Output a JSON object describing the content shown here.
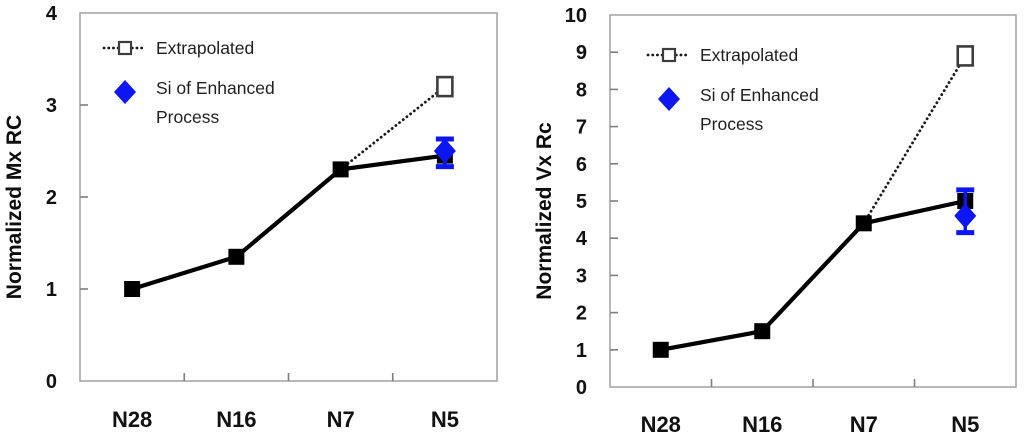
{
  "colors": {
    "background": "#ffffff",
    "axis_frame": "#a6a6a6",
    "tick": "#7f7f7f",
    "tick_text": "#111111",
    "axis_title_text": "#0d0d0d",
    "legend_text": "#1f1f1f",
    "series_black": "#000000",
    "extrapolated_line": "#1a1a1a",
    "open_square_stroke": "#3d3d3d",
    "enhanced_blue": "#0b16f2"
  },
  "chart_data": [
    {
      "type": "line",
      "name": "normalized-mx-rc",
      "title": "",
      "xlabel": "",
      "ylabel": "Normalized  Mx RC",
      "categories": [
        "N28",
        "N16",
        "N7",
        "N5"
      ],
      "ylim": [
        0,
        4
      ],
      "yticks": [
        0,
        1,
        2,
        3,
        4
      ],
      "grid": false,
      "legend_position": "top-left-inside",
      "series": [
        {
          "id": "extrapolated",
          "label": "Extrapolated",
          "style": "dotted-open-square",
          "points": [
            {
              "category": "N7",
              "value": 2.3,
              "marker": false
            },
            {
              "category": "N5",
              "value": 3.2,
              "marker": true
            }
          ]
        },
        {
          "id": "solid",
          "label": "",
          "style": "solid-filled-square",
          "points": [
            {
              "category": "N28",
              "value": 1.0
            },
            {
              "category": "N16",
              "value": 1.35
            },
            {
              "category": "N7",
              "value": 2.3
            },
            {
              "category": "N5",
              "value": 2.45
            }
          ]
        },
        {
          "id": "enhanced",
          "label": "Si of Enhanced Process",
          "style": "diamond-errorbar",
          "points": [
            {
              "category": "N5",
              "value": 2.5,
              "error_plus": 0.13,
              "error_minus": 0.17
            }
          ]
        }
      ],
      "legend": [
        {
          "marker": "dotted-open-square",
          "label_lines": [
            "Extrapolated"
          ]
        },
        {
          "marker": "blue-diamond",
          "label_lines": [
            "Si of Enhanced",
            "Process"
          ]
        }
      ]
    },
    {
      "type": "line",
      "name": "normalized-vx-rc",
      "title": "",
      "xlabel": "",
      "ylabel": "Normalized  Vx  Rc",
      "categories": [
        "N28",
        "N16",
        "N7",
        "N5"
      ],
      "ylim": [
        0,
        10
      ],
      "yticks": [
        0,
        1,
        2,
        3,
        4,
        5,
        6,
        7,
        8,
        9,
        10
      ],
      "grid": false,
      "legend_position": "top-left-inside",
      "series": [
        {
          "id": "extrapolated",
          "label": "Extrapolated",
          "style": "dotted-open-square",
          "points": [
            {
              "category": "N7",
              "value": 4.4,
              "marker": false
            },
            {
              "category": "N5",
              "value": 8.9,
              "marker": true
            }
          ]
        },
        {
          "id": "solid",
          "label": "",
          "style": "solid-filled-square",
          "points": [
            {
              "category": "N28",
              "value": 1.0
            },
            {
              "category": "N16",
              "value": 1.5
            },
            {
              "category": "N7",
              "value": 4.4
            },
            {
              "category": "N5",
              "value": 5.0
            }
          ]
        },
        {
          "id": "enhanced",
          "label": "Si of Enhanced Process",
          "style": "diamond-errorbar",
          "points": [
            {
              "category": "N5",
              "value": 4.6,
              "error_plus": 0.7,
              "error_minus": 0.45
            }
          ]
        }
      ],
      "legend": [
        {
          "marker": "dotted-open-square",
          "label_lines": [
            "Extrapolated"
          ]
        },
        {
          "marker": "blue-diamond",
          "label_lines": [
            "Si of Enhanced",
            "Process"
          ]
        }
      ]
    }
  ]
}
